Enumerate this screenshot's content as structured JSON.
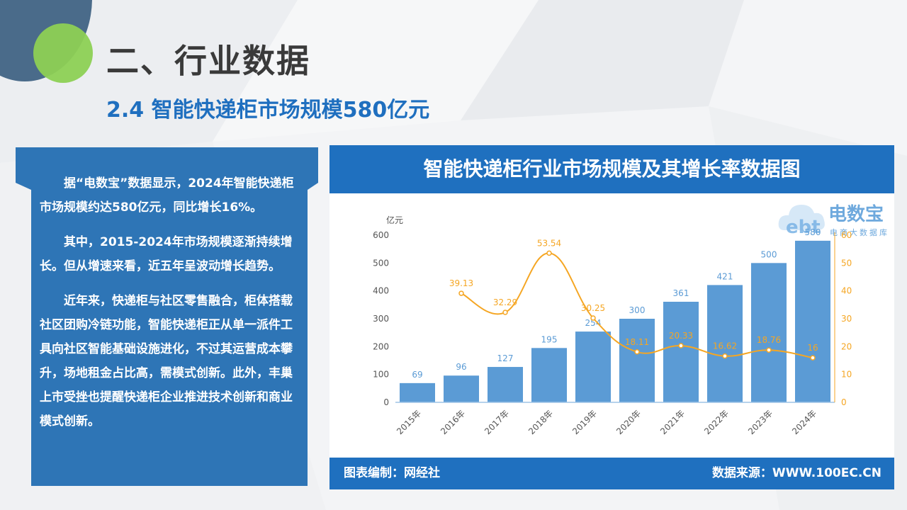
{
  "page": {
    "title": "二、行业数据",
    "subtitle": "2.4 智能快递柜市场规模580亿元"
  },
  "left_panel": {
    "paragraphs": [
      "据“电数宝”数据显示，2024年智能快递柜市场规模约达580亿元，同比增长16%。",
      "其中，2015-2024年市场规模逐渐持续增长。但从增速来看，近五年呈波动增长趋势。",
      "近年来，快递柜与社区零售融合，柜体搭载社区团购冷链功能，智能快递柜正从单一派件工具向社区智能基础设施进化，不过其运营成本攀升，场地租金占比高，需模式创新。此外，丰巢上市受挫也提醒快递柜企业推进技术创新和商业模式创新。"
    ]
  },
  "logo": {
    "mark": "ebt",
    "name": "电数宝",
    "tagline": "电商大数据库"
  },
  "colors": {
    "bar": "#5b9bd5",
    "line": "#f5a623",
    "header": "#1f70bf",
    "panel": "#2e75b6",
    "subtitle": "#1f6fbf"
  },
  "chart_data": {
    "type": "bar",
    "title": "智能快递柜行业市场规模及其增长率数据图",
    "ylabel": "亿元",
    "ylim": [
      0,
      600
    ],
    "y2lim": [
      0,
      60
    ],
    "yticks": [
      0,
      100,
      200,
      300,
      400,
      500,
      600
    ],
    "y2ticks": [
      0,
      10,
      20,
      30,
      40,
      50,
      60
    ],
    "categories": [
      "2015年",
      "2016年",
      "2017年",
      "2018年",
      "2019年",
      "2020年",
      "2021年",
      "2022年",
      "2023年",
      "2024年"
    ],
    "series": [
      {
        "type": "bar",
        "axis": "left",
        "values": [
          69,
          96,
          127,
          195,
          254,
          300,
          361,
          421,
          500,
          580
        ]
      },
      {
        "type": "line",
        "axis": "right",
        "smooth": true,
        "values": [
          null,
          39.13,
          32.29,
          53.54,
          30.25,
          18.11,
          20.33,
          16.62,
          18.76,
          16
        ]
      }
    ],
    "grid": false,
    "legend": "none"
  },
  "footer": {
    "compiler": "图表编制：网经社",
    "source": "数据来源：WWW.100EC.CN"
  }
}
